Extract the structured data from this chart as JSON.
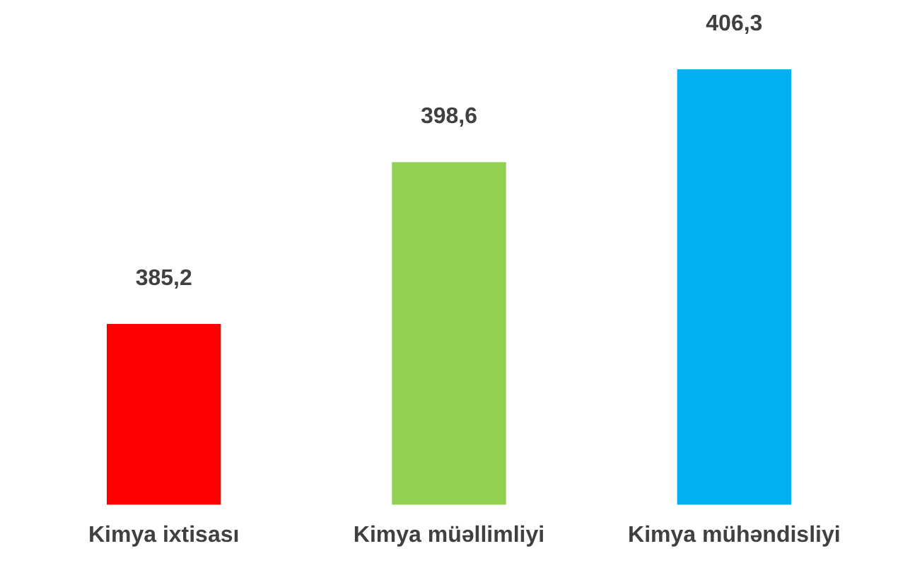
{
  "chart_data": {
    "type": "bar",
    "categories": [
      "Kimya ixtisası",
      "Kimya müəllimliyi",
      "Kimya mühəndisliyi"
    ],
    "values": [
      385.2,
      398.6,
      406.3
    ],
    "value_labels": [
      "385,2",
      "398,6",
      "406,3"
    ],
    "colors": [
      "#ff0000",
      "#92d050",
      "#00b0f0"
    ],
    "grid": false,
    "legend": false
  }
}
